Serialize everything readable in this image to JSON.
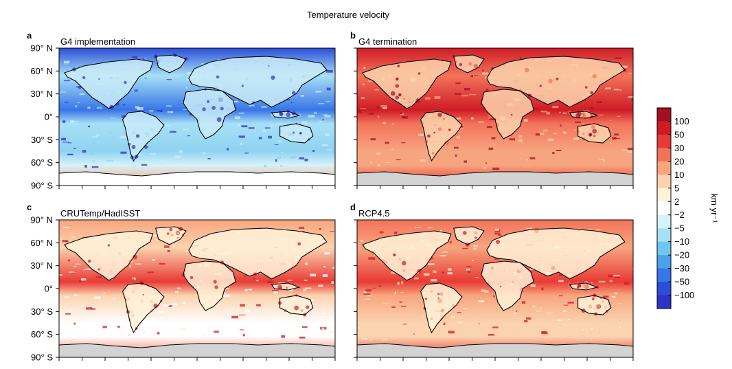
{
  "chart_data": {
    "type": "heatmap",
    "title": "Temperature velocity",
    "lat_tick_labels": [
      "90° N",
      "60° N",
      "30° N",
      "0°",
      "30° S",
      "60° S",
      "90° S"
    ],
    "lat_values": [
      90,
      60,
      30,
      0,
      -30,
      -60,
      -90
    ],
    "x_tick_count": 12,
    "colorbar": {
      "label": "km yr⁻¹",
      "tick_labels": [
        "100",
        "50",
        "30",
        "20",
        "10",
        "5",
        "2",
        "−2",
        "−5",
        "−10",
        "−20",
        "−30",
        "−50",
        "−100"
      ],
      "colors": [
        "#a50f22",
        "#cf1b26",
        "#e83a35",
        "#f3735a",
        "#f7a57f",
        "#fbd3ae",
        "#fff2d8",
        "#ffffff",
        "#d6f2fa",
        "#a7e0f5",
        "#6fc6ef",
        "#4ba1ea",
        "#3875e6",
        "#2a4ed8",
        "#2d32c8"
      ]
    },
    "panels": [
      {
        "letter": "a",
        "subtitle": "G4 implementation",
        "regime": "cooling",
        "palette": {
          "ocean": [
            "#a7e0f5",
            "#8fd3f2"
          ],
          "land": "#c9ebf8",
          "tropics": "#3875e6",
          "north": "#2a4ed8",
          "south_ocean": "#d6f2fa",
          "antarctica": "#ffffff",
          "hotspots": "#2d32c8",
          "warm_band": "#f7a57f"
        }
      },
      {
        "letter": "b",
        "subtitle": "G4 termination",
        "regime": "strong-warming",
        "palette": {
          "ocean": [
            "#f3735a",
            "#f7a57f"
          ],
          "land": "#fbd3ae",
          "tropics": "#cf1b26",
          "north": "#cf1b26",
          "south_ocean": "#f7a57f",
          "antarctica": "#d3d3d3",
          "hotspots": "#a50f22",
          "warm_band": "#e83a35"
        }
      },
      {
        "letter": "c",
        "subtitle": "CRUTemp/HadISST",
        "regime": "weak-warming",
        "palette": {
          "ocean": [
            "#fbd3ae",
            "#ffffff"
          ],
          "land": "#fff2d8",
          "tropics": "#e83a35",
          "north": "#f7a57f",
          "south_ocean": "#ffffff",
          "antarctica": "#d3d3d3",
          "hotspots": "#cf1b26",
          "warm_band": "#f3735a"
        }
      },
      {
        "letter": "d",
        "subtitle": "RCP4.5",
        "regime": "moderate-warming",
        "palette": {
          "ocean": [
            "#f7a57f",
            "#fbd3ae"
          ],
          "land": "#fff2d8",
          "tropics": "#e83a35",
          "north": "#f3735a",
          "south_ocean": "#fbd3ae",
          "antarctica": "#d3d3d3",
          "hotspots": "#cf1b26",
          "warm_band": "#e83a35"
        }
      }
    ]
  }
}
